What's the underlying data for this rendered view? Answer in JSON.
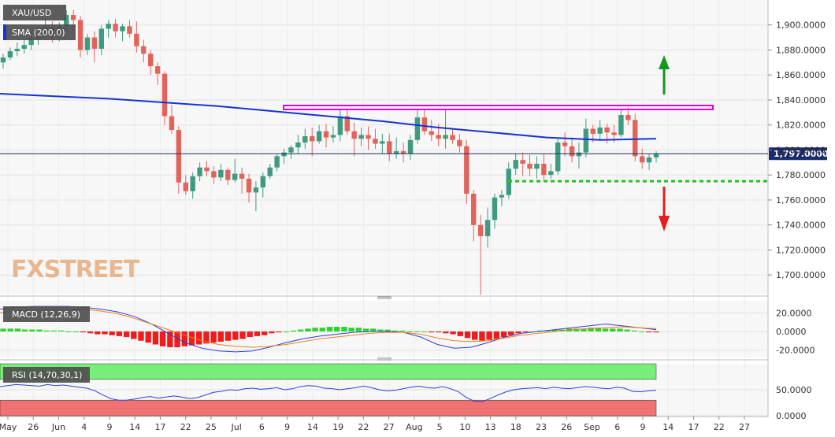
{
  "chart_data": {
    "type": "candlestick",
    "symbol": "XAU/USD",
    "overlay_label": "SMA (200,0)",
    "price_label": "1,797.0000",
    "watermark": "FXSTREET",
    "ylim": [
      1685,
      1920
    ],
    "y_ticks": [
      "1,900.0000",
      "1,880.0000",
      "1,860.0000",
      "1,840.0000",
      "1,820.0000",
      "1,800.0000",
      "1,780.0000",
      "1,760.0000",
      "1,740.0000",
      "1,720.0000",
      "1,700.0000"
    ],
    "y_tick_values": [
      1900,
      1880,
      1860,
      1840,
      1820,
      1800,
      1780,
      1760,
      1740,
      1720,
      1700
    ],
    "x_ticks": [
      "May",
      "26",
      "Jun",
      "4",
      "9",
      "14",
      "17",
      "22",
      "25",
      "Jul",
      "6",
      "9",
      "14",
      "19",
      "22",
      "27",
      "Aug",
      "5",
      "10",
      "13",
      "18",
      "23",
      "26",
      "Sep",
      "6",
      "9",
      "14",
      "17",
      "22",
      "27"
    ],
    "candles": [
      [
        1870,
        1877,
        1865,
        1874
      ],
      [
        1874,
        1882,
        1872,
        1879
      ],
      [
        1879,
        1886,
        1875,
        1881
      ],
      [
        1881,
        1890,
        1877,
        1884
      ],
      [
        1884,
        1895,
        1880,
        1889
      ],
      [
        1889,
        1898,
        1884,
        1893
      ],
      [
        1893,
        1905,
        1890,
        1898
      ],
      [
        1898,
        1903,
        1886,
        1892
      ],
      [
        1892,
        1902,
        1887,
        1899
      ],
      [
        1899,
        1912,
        1894,
        1908
      ],
      [
        1908,
        1912,
        1896,
        1904
      ],
      [
        1904,
        1907,
        1874,
        1880
      ],
      [
        1880,
        1893,
        1876,
        1890
      ],
      [
        1890,
        1895,
        1870,
        1881
      ],
      [
        1881,
        1900,
        1876,
        1897
      ],
      [
        1897,
        1904,
        1890,
        1901
      ],
      [
        1901,
        1905,
        1890,
        1895
      ],
      [
        1895,
        1901,
        1887,
        1899
      ],
      [
        1899,
        1904,
        1890,
        1893
      ],
      [
        1893,
        1903,
        1878,
        1883
      ],
      [
        1883,
        1888,
        1870,
        1877
      ],
      [
        1877,
        1880,
        1860,
        1867
      ],
      [
        1867,
        1870,
        1852,
        1861
      ],
      [
        1861,
        1863,
        1820,
        1827
      ],
      [
        1827,
        1836,
        1813,
        1816
      ],
      [
        1816,
        1819,
        1765,
        1774
      ],
      [
        1774,
        1780,
        1764,
        1767
      ],
      [
        1767,
        1782,
        1761,
        1779
      ],
      [
        1779,
        1790,
        1775,
        1786
      ],
      [
        1786,
        1791,
        1779,
        1783
      ],
      [
        1783,
        1787,
        1773,
        1778
      ],
      [
        1778,
        1789,
        1775,
        1784
      ],
      [
        1784,
        1786,
        1772,
        1776
      ],
      [
        1776,
        1793,
        1774,
        1781
      ],
      [
        1781,
        1786,
        1765,
        1777
      ],
      [
        1777,
        1781,
        1758,
        1766
      ],
      [
        1766,
        1775,
        1751,
        1770
      ],
      [
        1770,
        1782,
        1762,
        1779
      ],
      [
        1779,
        1789,
        1777,
        1786
      ],
      [
        1786,
        1797,
        1783,
        1795
      ],
      [
        1795,
        1801,
        1789,
        1798
      ],
      [
        1798,
        1804,
        1793,
        1802
      ],
      [
        1802,
        1812,
        1797,
        1806
      ],
      [
        1806,
        1817,
        1801,
        1811
      ],
      [
        1811,
        1818,
        1795,
        1807
      ],
      [
        1807,
        1820,
        1805,
        1815
      ],
      [
        1815,
        1821,
        1802,
        1810
      ],
      [
        1810,
        1819,
        1806,
        1812
      ],
      [
        1812,
        1832,
        1807,
        1827
      ],
      [
        1827,
        1832,
        1812,
        1815
      ],
      [
        1815,
        1822,
        1795,
        1809
      ],
      [
        1809,
        1818,
        1803,
        1812
      ],
      [
        1812,
        1819,
        1800,
        1809
      ],
      [
        1809,
        1817,
        1801,
        1805
      ],
      [
        1805,
        1813,
        1797,
        1807
      ],
      [
        1807,
        1813,
        1791,
        1797
      ],
      [
        1797,
        1810,
        1793,
        1799
      ],
      [
        1799,
        1806,
        1790,
        1797
      ],
      [
        1797,
        1812,
        1792,
        1808
      ],
      [
        1808,
        1832,
        1805,
        1826
      ],
      [
        1826,
        1832,
        1812,
        1815
      ],
      [
        1815,
        1824,
        1807,
        1812
      ],
      [
        1812,
        1821,
        1803,
        1809
      ],
      [
        1809,
        1832,
        1801,
        1812
      ],
      [
        1812,
        1817,
        1805,
        1808
      ],
      [
        1808,
        1813,
        1798,
        1803
      ],
      [
        1803,
        1808,
        1757,
        1765
      ],
      [
        1765,
        1768,
        1727,
        1740
      ],
      [
        1740,
        1748,
        1684,
        1731
      ],
      [
        1731,
        1754,
        1722,
        1744
      ],
      [
        1744,
        1765,
        1737,
        1762
      ],
      [
        1762,
        1768,
        1755,
        1764
      ],
      [
        1764,
        1790,
        1761,
        1785
      ],
      [
        1785,
        1797,
        1780,
        1792
      ],
      [
        1792,
        1798,
        1779,
        1789
      ],
      [
        1789,
        1796,
        1779,
        1785
      ],
      [
        1785,
        1795,
        1777,
        1789
      ],
      [
        1789,
        1797,
        1776,
        1780
      ],
      [
        1780,
        1789,
        1777,
        1783
      ],
      [
        1783,
        1810,
        1780,
        1806
      ],
      [
        1806,
        1814,
        1795,
        1803
      ],
      [
        1803,
        1810,
        1790,
        1795
      ],
      [
        1795,
        1806,
        1785,
        1798
      ],
      [
        1798,
        1825,
        1794,
        1817
      ],
      [
        1817,
        1820,
        1806,
        1813
      ],
      [
        1813,
        1824,
        1808,
        1818
      ],
      [
        1818,
        1821,
        1805,
        1814
      ],
      [
        1814,
        1820,
        1806,
        1812
      ],
      [
        1812,
        1833,
        1810,
        1828
      ],
      [
        1828,
        1834,
        1820,
        1824
      ],
      [
        1824,
        1829,
        1791,
        1795
      ],
      [
        1795,
        1801,
        1785,
        1790
      ],
      [
        1790,
        1797,
        1784,
        1794
      ],
      [
        1794,
        1799,
        1790,
        1797
      ]
    ],
    "sma200": [
      1845,
      1843,
      1841,
      1838,
      1835,
      1831,
      1827,
      1823,
      1818,
      1814,
      1810,
      1808,
      1809
    ],
    "resistance_level": 1834,
    "support_level": 1775,
    "macd": {
      "label": "MACD (12,26,9)",
      "ylim": [
        -28,
        33
      ],
      "y_ticks": [
        "20.0000",
        "0.0000",
        "-20.0000"
      ],
      "y_tick_values": [
        20,
        0,
        -20
      ],
      "histogram": [
        3,
        3,
        3,
        2,
        2,
        2,
        1,
        1,
        1,
        0,
        0,
        -1,
        -2,
        -3,
        -3,
        -4,
        -5,
        -6,
        -8,
        -10,
        -12,
        -14,
        -16,
        -17,
        -17,
        -16,
        -15,
        -14,
        -13,
        -12,
        -11,
        -10,
        -9,
        -8,
        -6,
        -5,
        -4,
        -2,
        -1,
        0,
        1,
        2,
        3,
        4,
        4,
        5,
        5,
        5,
        4,
        4,
        3,
        3,
        2,
        2,
        1,
        1,
        0,
        0,
        0,
        -1,
        -1,
        -2,
        -3,
        -5,
        -7,
        -9,
        -10,
        -9,
        -8,
        -6,
        -4,
        -2,
        -1,
        0,
        1,
        1,
        2,
        2,
        3,
        3,
        3,
        4,
        4,
        3,
        3,
        3,
        2,
        1,
        0,
        -1,
        -1
      ],
      "macd_line": [
        24,
        26,
        27,
        27,
        27,
        26,
        24,
        21,
        16,
        8,
        -2,
        -12,
        -18,
        -21,
        -22,
        -21,
        -17,
        -12,
        -8,
        -5,
        -3,
        -1,
        0,
        0,
        -1,
        -6,
        -14,
        -18,
        -17,
        -12,
        -6,
        -2,
        0,
        2,
        4,
        6,
        8,
        6,
        4,
        2
      ],
      "signal_line": [
        20,
        22,
        23,
        24,
        24,
        24,
        22,
        19,
        14,
        8,
        2,
        -4,
        -10,
        -14,
        -16,
        -17,
        -16,
        -14,
        -11,
        -8,
        -6,
        -4,
        -2,
        -1,
        -1,
        -3,
        -7,
        -10,
        -11,
        -10,
        -7,
        -4,
        -2,
        0,
        2,
        3,
        4,
        5,
        4,
        3
      ]
    },
    "rsi": {
      "label": "RSI (14,70,30,1)",
      "ylim": [
        0,
        100
      ],
      "y_ticks": [
        "50.0000",
        "0.0000"
      ],
      "y_tick_values": [
        50,
        0
      ],
      "upper_band": 70,
      "lower_band": 30,
      "values": [
        56,
        58,
        60,
        59,
        58,
        57,
        60,
        58,
        59,
        57,
        55,
        53,
        48,
        40,
        33,
        30,
        30,
        32,
        35,
        37,
        34,
        36,
        38,
        36,
        33,
        35,
        40,
        45,
        47,
        50,
        49,
        52,
        53,
        51,
        52,
        54,
        50,
        52,
        56,
        58,
        57,
        53,
        52,
        50,
        52,
        54,
        57,
        54,
        50,
        48,
        49,
        52,
        55,
        57,
        54,
        53,
        56,
        52,
        46,
        35,
        28,
        27,
        33,
        40,
        46,
        50,
        52,
        53,
        54,
        52,
        55,
        53,
        52,
        54,
        56,
        55,
        53,
        52,
        55,
        53,
        47,
        46,
        48,
        49
      ]
    }
  }
}
